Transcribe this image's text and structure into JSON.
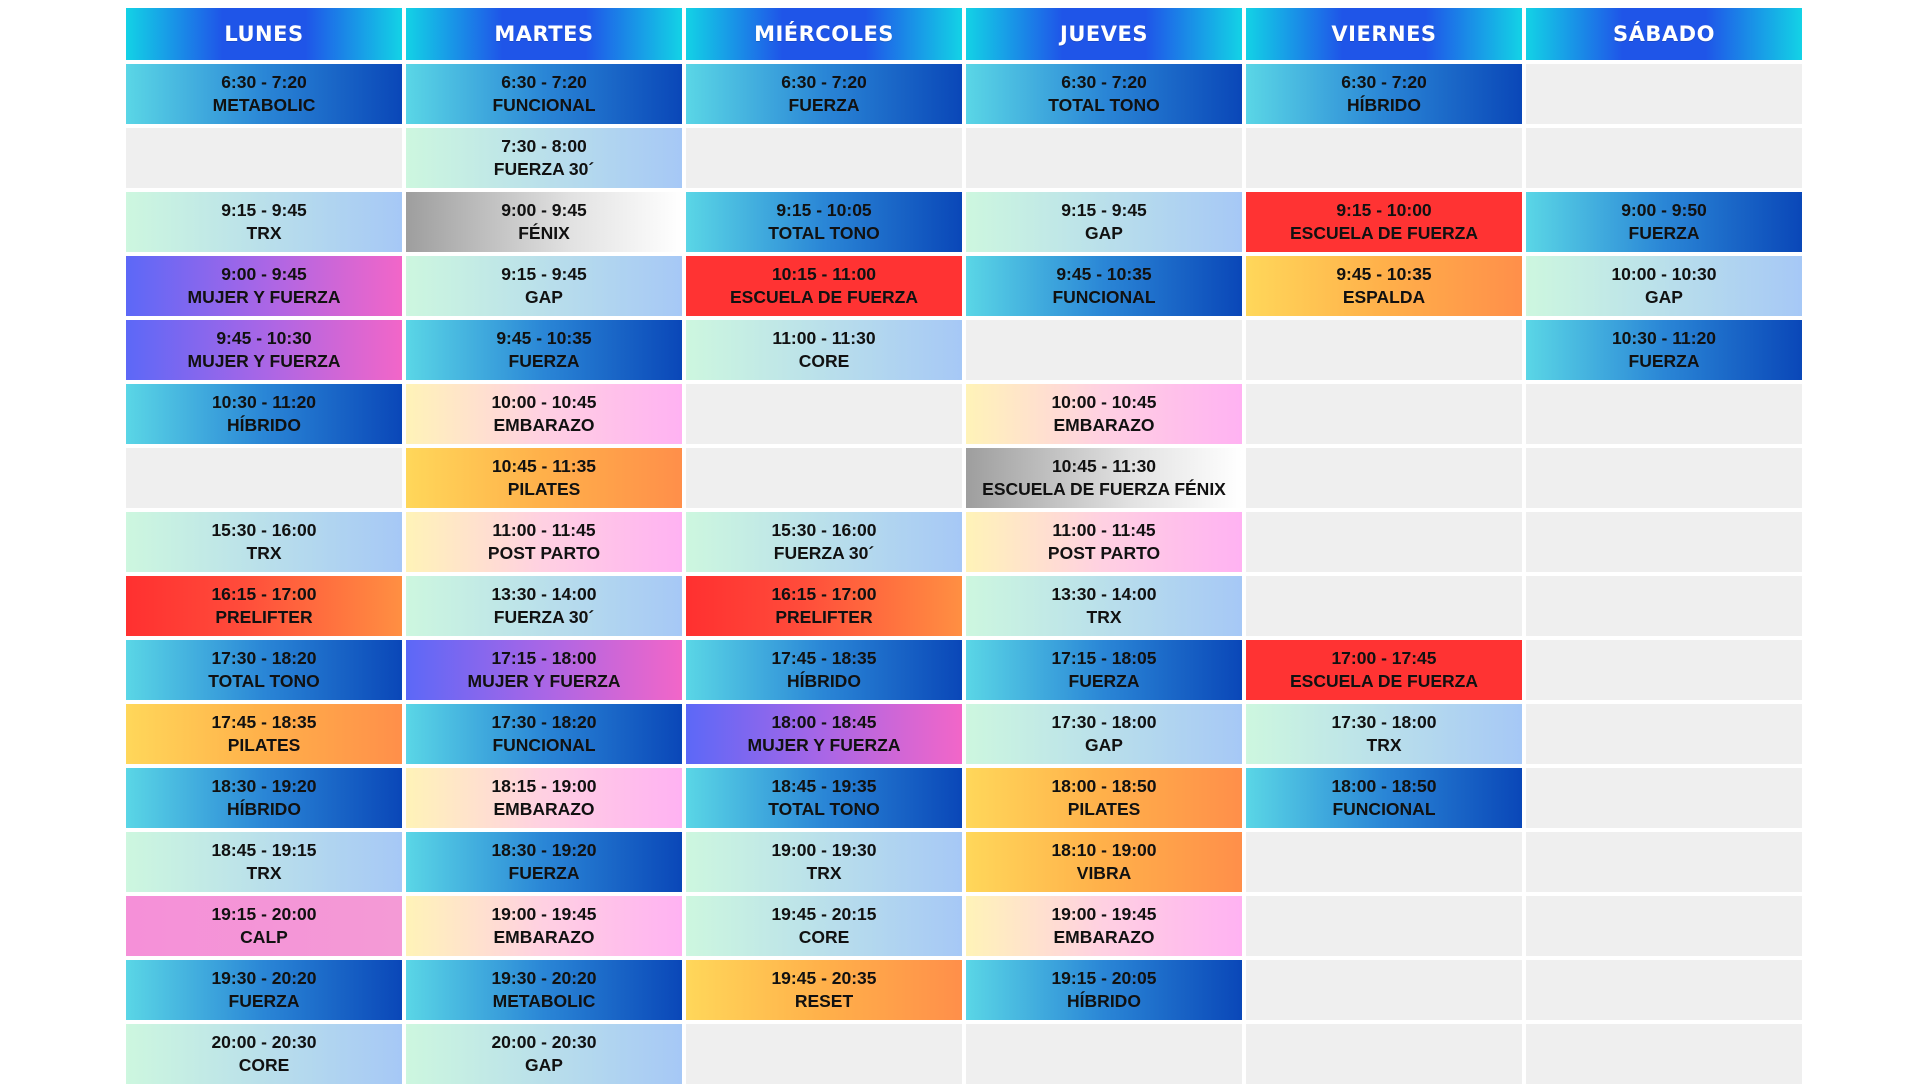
{
  "days": [
    "LUNES",
    "MARTES",
    "MIÉRCOLES",
    "JUEVES",
    "VIERNES",
    "SÁBADO"
  ],
  "colors": {
    "blue": "#2a86d6",
    "mint": "#cdf7df",
    "gray": "#9e9e9e",
    "purple": "#a966e6",
    "red": "#ff3333",
    "orange": "#ffb04a",
    "pink": "#ffd0e2",
    "magenta": "#f590d8",
    "empty": "#efefef"
  },
  "rows": [
    [
      {
        "time": "6:30 - 7:20",
        "class": "METABOLIC",
        "color": "blue"
      },
      {
        "time": "6:30 - 7:20",
        "class": "FUNCIONAL",
        "color": "blue"
      },
      {
        "time": "6:30 - 7:20",
        "class": "FUERZA",
        "color": "blue"
      },
      {
        "time": "6:30 - 7:20",
        "class": "TOTAL TONO",
        "color": "blue"
      },
      {
        "time": "6:30 - 7:20",
        "class": "HÍBRIDO",
        "color": "blue"
      },
      null
    ],
    [
      null,
      {
        "time": "7:30 - 8:00",
        "class": "FUERZA 30´",
        "color": "mint"
      },
      null,
      null,
      null,
      null
    ],
    [
      {
        "time": "9:15 - 9:45",
        "class": "TRX",
        "color": "mint"
      },
      {
        "time": "9:00 - 9:45",
        "class": "FÉNIX",
        "color": "gray"
      },
      {
        "time": "9:15 - 10:05",
        "class": "TOTAL TONO",
        "color": "blue"
      },
      {
        "time": "9:15 - 9:45",
        "class": "GAP",
        "color": "mint"
      },
      {
        "time": "9:15 - 10:00",
        "class": "ESCUELA DE FUERZA",
        "color": "red"
      },
      {
        "time": "9:00 - 9:50",
        "class": "FUERZA",
        "color": "blue"
      }
    ],
    [
      {
        "time": "9:00 - 9:45",
        "class": "MUJER Y FUERZA",
        "color": "purple"
      },
      {
        "time": "9:15 - 9:45",
        "class": "GAP",
        "color": "mint"
      },
      {
        "time": "10:15 - 11:00",
        "class": "ESCUELA DE FUERZA",
        "color": "red"
      },
      {
        "time": "9:45 - 10:35",
        "class": "FUNCIONAL",
        "color": "blue"
      },
      {
        "time": "9:45 - 10:35",
        "class": "ESPALDA",
        "color": "orange"
      },
      {
        "time": "10:00 - 10:30",
        "class": "GAP",
        "color": "mint"
      }
    ],
    [
      {
        "time": "9:45 - 10:30",
        "class": "MUJER Y FUERZA",
        "color": "purple"
      },
      {
        "time": "9:45 - 10:35",
        "class": "FUERZA",
        "color": "blue"
      },
      {
        "time": "11:00 - 11:30",
        "class": "CORE",
        "color": "mint"
      },
      null,
      null,
      {
        "time": "10:30 - 11:20",
        "class": "FUERZA",
        "color": "blue"
      }
    ],
    [
      {
        "time": "10:30 - 11:20",
        "class": "HÍBRIDO",
        "color": "blue"
      },
      {
        "time": "10:00 - 10:45",
        "class": "EMBARAZO",
        "color": "pink"
      },
      null,
      {
        "time": "10:00 - 10:45",
        "class": "EMBARAZO",
        "color": "pink"
      },
      null,
      null
    ],
    [
      null,
      {
        "time": "10:45 - 11:35",
        "class": "PILATES",
        "color": "orange"
      },
      null,
      {
        "time": "10:45 - 11:30",
        "class": "ESCUELA DE FUERZA FÉNIX",
        "color": "gray"
      },
      null,
      null
    ],
    [
      {
        "time": "15:30 - 16:00",
        "class": "TRX",
        "color": "mint"
      },
      {
        "time": "11:00 - 11:45",
        "class": "POST PARTO",
        "color": "pink"
      },
      {
        "time": "15:30 - 16:00",
        "class": "FUERZA 30´",
        "color": "mint"
      },
      {
        "time": "11:00 - 11:45",
        "class": "POST PARTO",
        "color": "pink"
      },
      null,
      null
    ],
    [
      {
        "time": "16:15 - 17:00",
        "class": "PRELIFTER",
        "color": "redorange"
      },
      {
        "time": "13:30 - 14:00",
        "class": "FUERZA 30´",
        "color": "mint"
      },
      {
        "time": "16:15 - 17:00",
        "class": "PRELIFTER",
        "color": "redorange"
      },
      {
        "time": "13:30 - 14:00",
        "class": "TRX",
        "color": "mint"
      },
      null,
      null
    ],
    [
      {
        "time": "17:30 - 18:20",
        "class": "TOTAL TONO",
        "color": "blue"
      },
      {
        "time": "17:15 - 18:00",
        "class": "MUJER Y FUERZA",
        "color": "purple"
      },
      {
        "time": "17:45 - 18:35",
        "class": "HÍBRIDO",
        "color": "blue"
      },
      {
        "time": "17:15 - 18:05",
        "class": "FUERZA",
        "color": "blue"
      },
      {
        "time": "17:00 - 17:45",
        "class": "ESCUELA DE FUERZA",
        "color": "red"
      },
      null
    ],
    [
      {
        "time": "17:45 - 18:35",
        "class": "PILATES",
        "color": "orange"
      },
      {
        "time": "17:30 - 18:20",
        "class": "FUNCIONAL",
        "color": "blue"
      },
      {
        "time": "18:00 - 18:45",
        "class": "MUJER Y FUERZA",
        "color": "purple"
      },
      {
        "time": "17:30 - 18:00",
        "class": "GAP",
        "color": "mint"
      },
      {
        "time": "17:30 - 18:00",
        "class": "TRX",
        "color": "mint"
      },
      null
    ],
    [
      {
        "time": "18:30 - 19:20",
        "class": "HÍBRIDO",
        "color": "blue"
      },
      {
        "time": "18:15 - 19:00",
        "class": "EMBARAZO",
        "color": "pink"
      },
      {
        "time": "18:45 - 19:35",
        "class": "TOTAL TONO",
        "color": "blue"
      },
      {
        "time": "18:00 - 18:50",
        "class": "PILATES",
        "color": "orange"
      },
      {
        "time": "18:00 - 18:50",
        "class": "FUNCIONAL",
        "color": "blue"
      },
      null
    ],
    [
      {
        "time": "18:45 - 19:15",
        "class": "TRX",
        "color": "mint"
      },
      {
        "time": "18:30 - 19:20",
        "class": "FUERZA",
        "color": "blue"
      },
      {
        "time": "19:00 - 19:30",
        "class": "TRX",
        "color": "mint"
      },
      {
        "time": "18:10 - 19:00",
        "class": "VIBRA",
        "color": "orange"
      },
      null,
      null
    ],
    [
      {
        "time": "19:15 - 20:00",
        "class": "CALP",
        "color": "magenta"
      },
      {
        "time": "19:00 - 19:45",
        "class": "EMBARAZO",
        "color": "pink"
      },
      {
        "time": "19:45 - 20:15",
        "class": "CORE",
        "color": "mint"
      },
      {
        "time": "19:00 - 19:45",
        "class": "EMBARAZO",
        "color": "pink"
      },
      null,
      null
    ],
    [
      {
        "time": "19:30 - 20:20",
        "class": "FUERZA",
        "color": "blue"
      },
      {
        "time": "19:30 - 20:20",
        "class": "METABOLIC",
        "color": "blue"
      },
      {
        "time": "19:45 - 20:35",
        "class": "RESET",
        "color": "orange"
      },
      {
        "time": "19:15 - 20:05",
        "class": "HÍBRIDO",
        "color": "blue"
      },
      null,
      null
    ],
    [
      {
        "time": "20:00 - 20:30",
        "class": "CORE",
        "color": "mint"
      },
      {
        "time": "20:00 - 20:30",
        "class": "GAP",
        "color": "mint"
      },
      null,
      null,
      null,
      null
    ]
  ]
}
